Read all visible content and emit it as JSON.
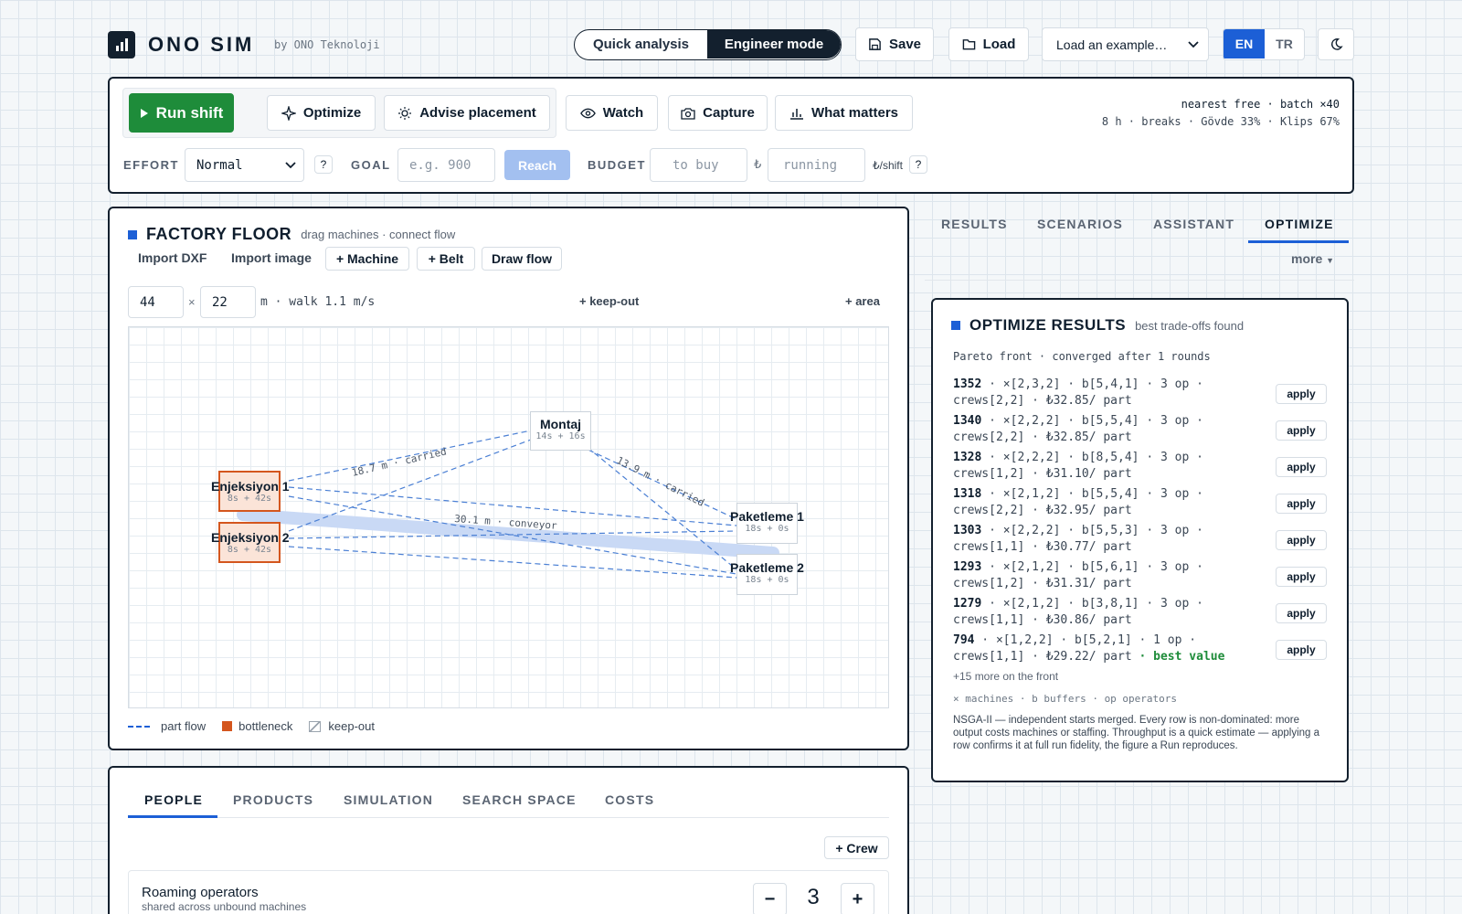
{
  "header": {
    "app_title": "ONO SIM",
    "byline": "by ONO Teknoloji",
    "mode_quick": "Quick analysis",
    "mode_engineer": "Engineer mode",
    "save": "Save",
    "load": "Load",
    "example_select": "Load an example…",
    "lang_en": "EN",
    "lang_tr": "TR"
  },
  "toolbar": {
    "run": "Run shift",
    "optimize": "Optimize",
    "advise": "Advise placement",
    "watch": "Watch",
    "capture": "Capture",
    "what_matters": "What matters",
    "status_line1": "nearest free · batch ×40",
    "status_line2": "8 h · breaks · Gövde 33% · Klips 67%",
    "effort_label": "EFFORT",
    "effort_value": "Normal",
    "goal_label": "GOAL",
    "goal_placeholder": "e.g. 900",
    "reach": "Reach",
    "budget_label": "BUDGET",
    "budget_buy_placeholder": "to buy",
    "currency": "₺",
    "budget_running_placeholder": "running",
    "per_shift": "₺/shift",
    "help": "?"
  },
  "floor": {
    "title": "FACTORY FLOOR",
    "subtitle": "drag machines · connect flow",
    "import_dxf": "Import DXF",
    "import_image": "Import image",
    "add_machine": "+ Machine",
    "add_belt": "+ Belt",
    "draw_flow": "Draw flow",
    "width": "44",
    "times": "×",
    "height": "22",
    "walk": "m · walk 1.1 m/s",
    "keep_out": "+ keep-out",
    "area": "+ area",
    "nodes": [
      {
        "name": "Montaj",
        "sub": "14s + 16s"
      },
      {
        "name": "Enjeksiyon 1",
        "sub": "8s + 42s"
      },
      {
        "name": "Enjeksiyon 2",
        "sub": "8s + 42s"
      },
      {
        "name": "Paketleme 1",
        "sub": "18s + 0s"
      },
      {
        "name": "Paketleme 2",
        "sub": "18s + 0s"
      }
    ],
    "edge_labels": [
      "18.7 m · carried",
      "13.9 m · carried",
      "30.1 m · conveyor"
    ],
    "legend": {
      "part_flow": "part flow",
      "bottleneck": "bottleneck",
      "keep_out": "keep-out"
    },
    "colors": {
      "flow": "#4a7fd4",
      "bottleneck": "#d4561e",
      "conveyor": "#c9d9f5"
    }
  },
  "tabs_right": [
    "RESULTS",
    "SCENARIOS",
    "ASSISTANT",
    "OPTIMIZE"
  ],
  "tabs_right_active": "OPTIMIZE",
  "more": "more",
  "optimize": {
    "title": "OPTIMIZE RESULTS",
    "subtitle": "best trade-offs found",
    "pareto": "Pareto front · converged after 1 rounds",
    "rows": [
      {
        "value": "1352",
        "l1": " · ×[2,3,2] · b[5,4,1] · 3 op ·",
        "l2": "crews[2,2] · ₺32.85/ part",
        "best": ""
      },
      {
        "value": "1340",
        "l1": " · ×[2,2,2] · b[5,5,4] · 3 op ·",
        "l2": "crews[2,2] · ₺32.85/ part",
        "best": ""
      },
      {
        "value": "1328",
        "l1": " · ×[2,2,2] · b[8,5,4] · 3 op ·",
        "l2": "crews[1,2] · ₺31.10/ part",
        "best": ""
      },
      {
        "value": "1318",
        "l1": " · ×[2,1,2] · b[5,5,4] · 3 op ·",
        "l2": "crews[2,2] · ₺32.95/ part",
        "best": ""
      },
      {
        "value": "1303",
        "l1": " · ×[2,2,2] · b[5,5,3] · 3 op ·",
        "l2": "crews[1,1] · ₺30.77/ part",
        "best": ""
      },
      {
        "value": "1293",
        "l1": " · ×[2,1,2] · b[5,6,1] · 3 op ·",
        "l2": "crews[1,2] · ₺31.31/ part",
        "best": ""
      },
      {
        "value": "1279",
        "l1": " · ×[2,1,2] · b[3,8,1] · 3 op ·",
        "l2": "crews[1,1] · ₺30.86/ part",
        "best": ""
      },
      {
        "value": "794",
        "l1": " · ×[1,2,2] · b[5,2,1] · 1 op ·",
        "l2": "crews[1,1] · ₺29.22/ part",
        "best": " · best value"
      }
    ],
    "apply": "apply",
    "more_front": "+15 more on the front",
    "legend": "× machines · b buffers · op operators",
    "note": "NSGA-II — independent starts merged. Every row is non-dominated: more output costs machines or staffing. Throughput is a quick estimate — applying a row confirms it at full run fidelity, the figure a Run reproduces."
  },
  "bottom": {
    "tabs": [
      "PEOPLE",
      "PRODUCTS",
      "SIMULATION",
      "SEARCH SPACE",
      "COSTS"
    ],
    "active": "PEOPLE",
    "add_crew": "+ Crew",
    "roaming_title": "Roaming operators",
    "roaming_sub": "shared across unbound machines",
    "minus": "−",
    "count": "3",
    "plus": "+"
  },
  "accent": "#1c5fd6",
  "run_green": "#1e8c3a"
}
